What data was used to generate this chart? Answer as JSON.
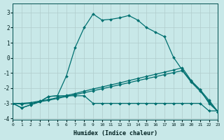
{
  "background_color": "#c8e8e8",
  "grid_color": "#b0cccc",
  "line_color": "#007070",
  "xlabel": "Humidex (Indice chaleur)",
  "xlim": [
    0,
    23
  ],
  "ylim": [
    -4.1,
    3.6
  ],
  "yticks": [
    -4,
    -3,
    -2,
    -1,
    0,
    1,
    2,
    3
  ],
  "xticks": [
    0,
    1,
    2,
    3,
    4,
    5,
    6,
    7,
    8,
    9,
    10,
    11,
    12,
    13,
    14,
    15,
    16,
    17,
    18,
    19,
    20,
    21,
    22,
    23
  ],
  "s1_x": [
    0,
    1,
    2,
    3,
    4,
    5,
    6,
    7,
    8,
    9,
    10,
    11,
    12,
    13,
    14,
    15,
    16,
    17,
    18,
    19,
    20,
    21,
    22,
    23
  ],
  "s1_y": [
    -3.0,
    -3.3,
    -3.1,
    -2.9,
    -2.55,
    -2.5,
    -1.2,
    0.7,
    2.0,
    2.9,
    2.5,
    2.55,
    2.65,
    2.8,
    2.5,
    2.0,
    1.7,
    1.4,
    0.05,
    -0.8,
    -1.55,
    -2.1,
    -3.0,
    -3.55
  ],
  "s2_x": [
    0,
    1,
    2,
    3,
    4,
    5,
    6,
    7,
    8,
    9,
    10,
    11,
    12,
    13,
    14,
    15,
    16,
    17,
    18,
    19,
    20,
    21,
    22,
    23
  ],
  "s2_y": [
    -3.0,
    -3.3,
    -3.1,
    -2.9,
    -2.55,
    -2.5,
    -2.5,
    -2.5,
    -2.5,
    -3.0,
    -3.0,
    -3.0,
    -3.0,
    -3.0,
    -3.0,
    -3.0,
    -3.0,
    -3.0,
    -3.0,
    -3.0,
    -3.0,
    -3.0,
    -3.5,
    -3.5
  ],
  "s3_x": [
    0,
    1,
    2,
    3,
    4,
    5,
    6,
    7,
    8,
    9,
    10,
    11,
    12,
    13,
    14,
    15,
    16,
    17,
    18,
    19,
    20,
    21,
    22,
    23
  ],
  "s3_y": [
    -3.0,
    -3.0,
    -2.95,
    -2.85,
    -2.75,
    -2.62,
    -2.48,
    -2.35,
    -2.2,
    -2.05,
    -1.92,
    -1.78,
    -1.65,
    -1.5,
    -1.36,
    -1.22,
    -1.08,
    -0.94,
    -0.8,
    -0.65,
    -1.5,
    -2.1,
    -2.8,
    -3.55
  ],
  "s4_x": [
    0,
    1,
    2,
    3,
    4,
    5,
    6,
    7,
    8,
    9,
    10,
    11,
    12,
    13,
    14,
    15,
    16,
    17,
    18,
    19,
    20,
    21,
    22,
    23
  ],
  "s4_y": [
    -3.0,
    -3.05,
    -3.0,
    -2.9,
    -2.8,
    -2.68,
    -2.55,
    -2.42,
    -2.3,
    -2.17,
    -2.04,
    -1.9,
    -1.77,
    -1.64,
    -1.5,
    -1.37,
    -1.24,
    -1.1,
    -0.97,
    -0.84,
    -1.6,
    -2.2,
    -2.9,
    -3.55
  ]
}
